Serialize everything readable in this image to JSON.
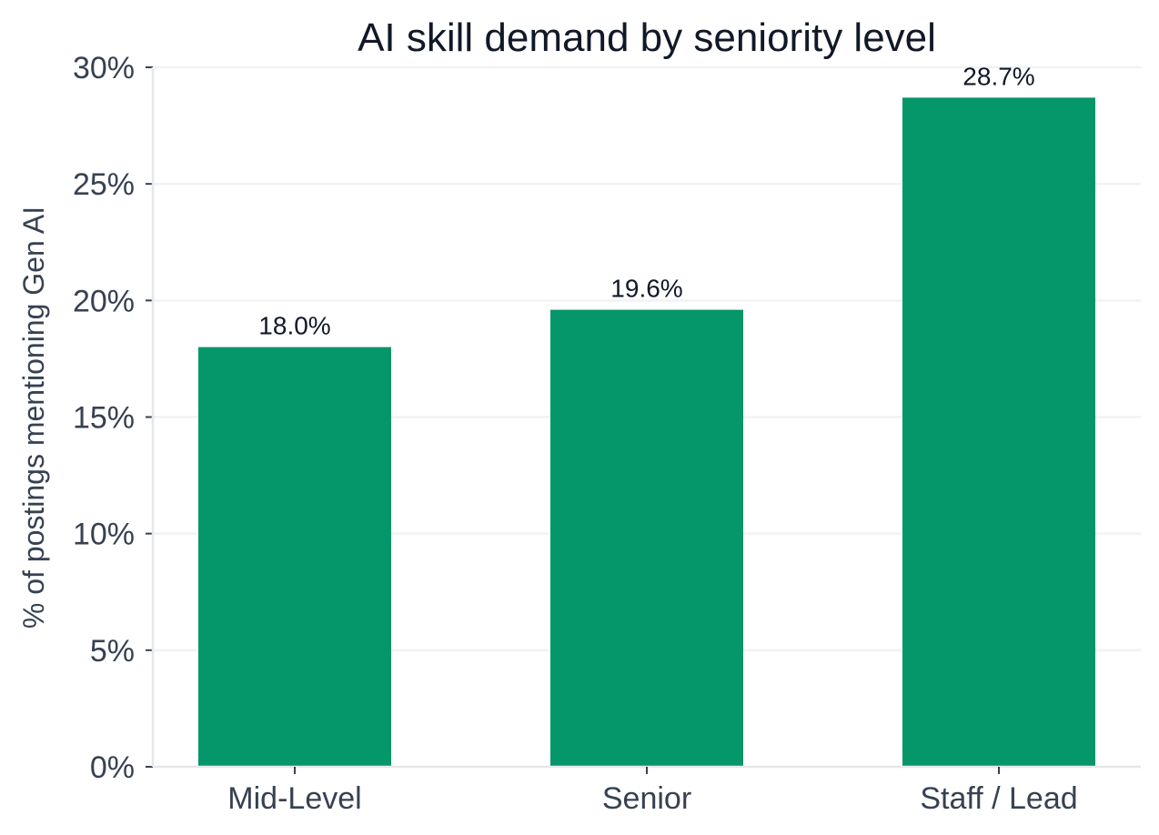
{
  "chart_data": {
    "type": "bar",
    "title": "AI skill demand by seniority level",
    "xlabel": "",
    "ylabel": "% of postings mentioning Gen AI",
    "categories": [
      "Mid-Level",
      "Senior",
      "Staff / Lead"
    ],
    "values": [
      18.0,
      19.6,
      28.7
    ],
    "data_labels": [
      "18.0%",
      "19.6%",
      "28.7%"
    ],
    "ylim": [
      0,
      30
    ],
    "yticks": [
      0,
      5,
      10,
      15,
      20,
      25,
      30
    ],
    "ytick_labels": [
      "0%",
      "5%",
      "10%",
      "15%",
      "20%",
      "25%",
      "30%"
    ],
    "grid": true,
    "legend": "none",
    "colors": {
      "bar": "#059669",
      "grid": "#f0f2f5",
      "axis": "#e5e7eb",
      "tick": "#374151",
      "title": "#111827"
    }
  }
}
